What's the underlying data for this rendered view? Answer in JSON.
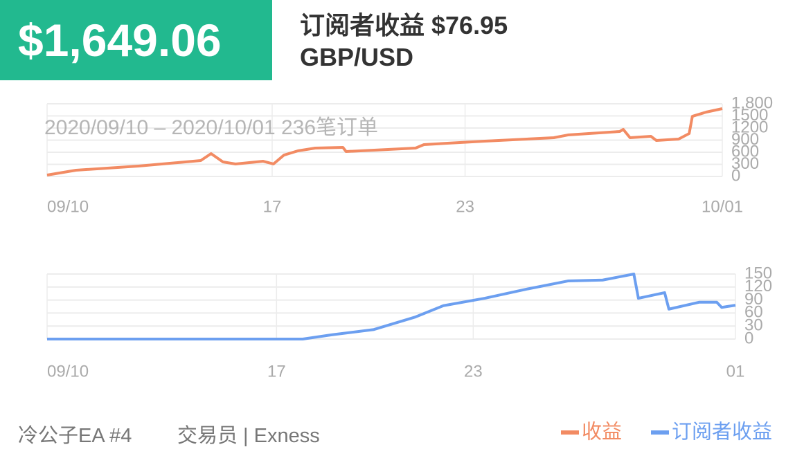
{
  "header": {
    "balance": "$1,649.06",
    "title": "订阅者收益 $76.95",
    "pair": "GBP/USD"
  },
  "footer": {
    "name": "冷公子EA #4",
    "broker": "交易员 | Exness"
  },
  "chart_data": [
    {
      "type": "line",
      "subtitle": "2020/09/10 – 2020/10/01  236笔订单",
      "x": [
        0,
        0.9,
        2.84,
        4.78,
        5.1,
        5.47,
        5.86,
        6.72,
        7.04,
        7.37,
        7.8,
        8.34,
        9.2,
        9.3,
        11.46,
        11.72,
        13.61,
        15.76,
        16.2,
        17.81,
        17.92,
        18.13,
        18.78,
        18.95,
        19.64,
        19.97,
        20.07,
        20.5,
        21
      ],
      "series": [
        {
          "name": "收益",
          "color": "#f28b63",
          "values": [
            34,
            154,
            257,
            394,
            566,
            360,
            309,
            377,
            309,
            531,
            634,
            703,
            720,
            617,
            703,
            789,
            874,
            960,
            1028,
            1114,
            1166,
            960,
            994,
            891,
            926,
            1063,
            1491,
            1594,
            1680
          ]
        }
      ],
      "xlim": [
        0,
        21
      ],
      "xticks": [
        {
          "value": 0,
          "label": "09/10"
        },
        {
          "value": 7,
          "label": "17"
        },
        {
          "value": 13,
          "label": "23"
        },
        {
          "value": 21,
          "label": "10/01"
        }
      ],
      "ylim": [
        0,
        1800
      ],
      "yticks": [
        0,
        300,
        600,
        900,
        1200,
        1500,
        {
          "value": 1800,
          "label": "1,800"
        }
      ],
      "grid": true
    },
    {
      "type": "line",
      "x": [
        0,
        7.8,
        8.7,
        9.97,
        11.24,
        12.09,
        13.35,
        14.62,
        15.89,
        16.95,
        17.9,
        18.04,
        18.84,
        18.97,
        19.9,
        20.43,
        20.58,
        21
      ],
      "series": [
        {
          "name": "订阅者收益",
          "color": "#6c9ff0",
          "values": [
            0,
            0,
            10,
            22,
            51,
            77,
            94,
            115,
            134,
            136,
            150,
            94,
            107,
            69,
            85,
            85,
            73,
            78
          ]
        }
      ],
      "xlim": [
        0,
        21
      ],
      "xticks": [
        {
          "value": 0,
          "label": "09/10"
        },
        {
          "value": 7,
          "label": "17"
        },
        {
          "value": 13,
          "label": "23"
        },
        {
          "value": 21,
          "label": "01"
        }
      ],
      "ylim": [
        0,
        150
      ],
      "yticks": [
        0,
        30,
        60,
        90,
        120,
        150
      ],
      "grid": true
    }
  ]
}
